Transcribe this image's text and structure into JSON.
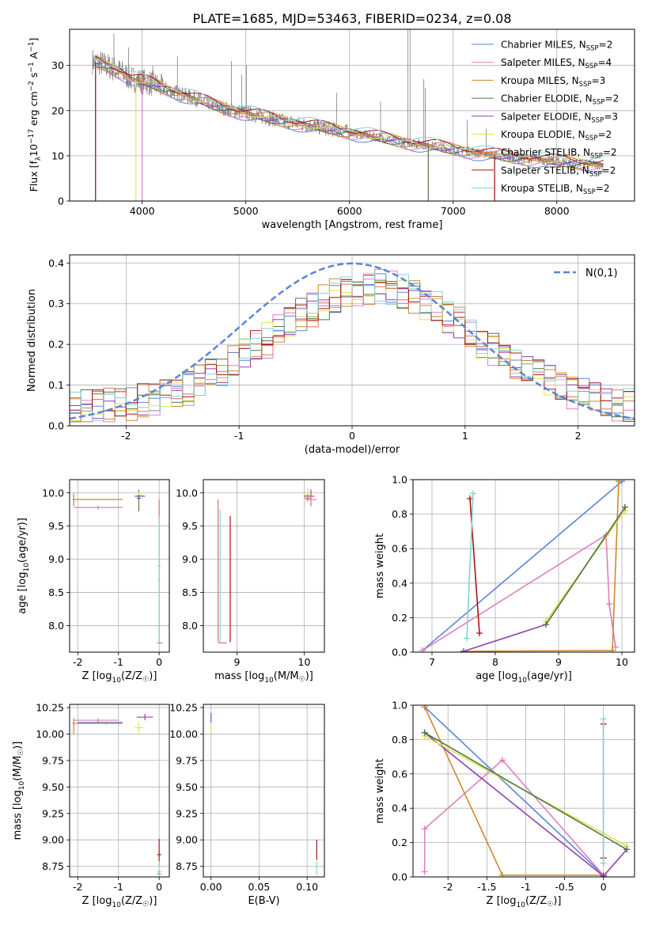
{
  "title": "PLATE=1685, MJD=53463, FIBERID=0234, z=0.08",
  "colors": [
    "#5b85d6",
    "#e07fbf",
    "#cc8a2a",
    "#4e7a44",
    "#8e44ad",
    "#e0e34f",
    "#d27a58",
    "#a81515",
    "#86d3d6"
  ],
  "legend_labels": [
    "Chabrier MILES, N",
    "Salpeter MILES, N",
    "Kroupa MILES, N",
    "Chabrier ELODIE, N",
    "Salpeter ELODIE, N",
    "Kroupa ELODIE, N",
    "Chabrier STELIB, N",
    "Salpeter STELIB, N",
    "Kroupa STELIB, N"
  ],
  "legend_sub": "SSP",
  "legend_counts": [
    "=2",
    "=4",
    "=3",
    "=2",
    "=3",
    "=2",
    "=2",
    "=2",
    "=2"
  ],
  "chart_data": [
    {
      "type": "line",
      "id": "spectrum",
      "xlabel": "wavelength [Angstrom, rest frame]",
      "ylabel": "Flux [f_λ 10^-17 erg cm^-2 s^-1 A^-1]",
      "xlim": [
        3300,
        8750
      ],
      "ylim": [
        0,
        38
      ],
      "xticks": [
        4000,
        5000,
        6000,
        7000,
        8000
      ],
      "yticks": [
        0,
        10,
        20,
        30
      ],
      "continuum": {
        "x": [
          3500,
          3600,
          3700,
          3800,
          3900,
          4000,
          4100,
          4200,
          4400,
          4600,
          4800,
          5000,
          5200,
          5400,
          5600,
          5800,
          6000,
          6200,
          6400,
          6600,
          6800,
          7000,
          7200,
          7400,
          7600,
          7800,
          8000,
          8200,
          8400
        ],
        "y": [
          31,
          30.5,
          29.5,
          28.5,
          27,
          26.5,
          26,
          25,
          23.5,
          22,
          20.5,
          19.5,
          18.5,
          17.5,
          16.8,
          16,
          15.2,
          14.4,
          13.6,
          12.8,
          12.2,
          11.5,
          10.8,
          10.2,
          9.6,
          9.2,
          8.8,
          8.4,
          8.0
        ]
      }
    },
    {
      "type": "histogram",
      "id": "residuals",
      "xlabel": "(data-model)/error",
      "ylabel": "Normed distribution",
      "xlim": [
        -2.5,
        2.5
      ],
      "ylim": [
        0,
        0.42
      ],
      "xticks": [
        -2,
        -1,
        0,
        1,
        2
      ],
      "yticks": [
        0.0,
        0.1,
        0.2,
        0.3,
        0.4
      ],
      "gaussian_label": "N(0,1)",
      "bin_width": 0.1
    },
    {
      "type": "scatter",
      "id": "age_vs_Z",
      "xlabel": "Z [log10(Z/Z☉)]",
      "ylabel": "age [log10(age/yr)]",
      "xlim": [
        -2.2,
        0.25
      ],
      "ylim": [
        7.6,
        10.2
      ],
      "xticks": [
        -2,
        -1,
        0
      ],
      "yticks": [
        8.0,
        8.5,
        9.0,
        9.5,
        10.0
      ]
    },
    {
      "type": "scatter",
      "id": "age_vs_mass",
      "xlabel": "mass [log10(M/M☉)]",
      "ylabel": "",
      "xlim": [
        8.5,
        10.3
      ],
      "ylim": [
        7.6,
        10.2
      ],
      "xticks": [
        9,
        10
      ],
      "yticks": [
        8.0,
        8.5,
        9.0,
        9.5,
        10.0
      ]
    },
    {
      "type": "line",
      "id": "weight_vs_age",
      "xlabel": "age [log10(age/yr)]",
      "ylabel": "mass weight",
      "xlim": [
        6.7,
        10.2
      ],
      "ylim": [
        0,
        1.0
      ],
      "xticks": [
        7,
        8,
        9,
        10
      ],
      "yticks": [
        0.0,
        0.2,
        0.4,
        0.6,
        0.8,
        1.0
      ],
      "series": [
        {
          "c": 0,
          "x": [
            6.85,
            10.0
          ],
          "y": [
            0.01,
            0.99
          ]
        },
        {
          "c": 1,
          "x": [
            6.85,
            9.75,
            9.8,
            9.9
          ],
          "y": [
            0.01,
            0.68,
            0.28,
            0.03
          ]
        },
        {
          "c": 2,
          "x": [
            7.5,
            9.85,
            9.95
          ],
          "y": [
            0.005,
            0.01,
            0.99
          ]
        },
        {
          "c": 4,
          "x": [
            7.5,
            8.8,
            10.05
          ],
          "y": [
            0.005,
            0.16,
            0.84
          ]
        },
        {
          "c": 5,
          "x": [
            8.8,
            10.05
          ],
          "y": [
            0.18,
            0.82
          ]
        },
        {
          "c": 3,
          "x": [
            8.8,
            10.05
          ],
          "y": [
            0.16,
            0.84
          ]
        },
        {
          "c": 7,
          "x": [
            7.6,
            7.75
          ],
          "y": [
            0.89,
            0.11
          ]
        },
        {
          "c": 8,
          "x": [
            7.55,
            7.65
          ],
          "y": [
            0.08,
            0.92
          ]
        }
      ]
    },
    {
      "type": "scatter",
      "id": "mass_vs_Z",
      "xlabel": "Z [log10(Z/Z☉)]",
      "ylabel": "mass [log10(M/M☉)]",
      "xlim": [
        -2.2,
        0.25
      ],
      "ylim": [
        8.65,
        10.28
      ],
      "xticks": [
        -2,
        -1,
        0
      ],
      "yticks": [
        8.75,
        9.0,
        9.25,
        9.5,
        9.75,
        10.0,
        10.25
      ]
    },
    {
      "type": "scatter",
      "id": "mass_vs_ebv",
      "xlabel": "E(B-V)",
      "ylabel": "",
      "xlim": [
        -0.008,
        0.118
      ],
      "ylim": [
        8.65,
        10.28
      ],
      "xticks": [
        0.0,
        0.05,
        0.1
      ],
      "yticks": [
        8.75,
        9.0,
        9.25,
        9.5,
        9.75,
        10.0,
        10.25
      ]
    },
    {
      "type": "line",
      "id": "weight_vs_Z",
      "xlabel": "Z [log10(Z/Z☉)]",
      "ylabel": "mass weight",
      "xlim": [
        -2.45,
        0.4
      ],
      "ylim": [
        0,
        1.0
      ],
      "xticks": [
        -2.0,
        -1.5,
        -1.0,
        -0.5,
        0.0
      ],
      "yticks": [
        0.0,
        0.2,
        0.4,
        0.6,
        0.8,
        1.0
      ],
      "series": [
        {
          "c": 0,
          "x": [
            -2.3,
            0.0
          ],
          "y": [
            0.99,
            0.01
          ]
        },
        {
          "c": 1,
          "x": [
            -2.3,
            -2.3,
            -1.3,
            0.0
          ],
          "y": [
            0.03,
            0.28,
            0.68,
            0.01
          ]
        },
        {
          "c": 2,
          "x": [
            -2.3,
            -1.3,
            0.0
          ],
          "y": [
            0.99,
            0.01,
            0.01
          ]
        },
        {
          "c": 4,
          "x": [
            -2.3,
            0.0,
            0.3
          ],
          "y": [
            0.84,
            0.005,
            0.16
          ]
        },
        {
          "c": 5,
          "x": [
            -2.3,
            0.3
          ],
          "y": [
            0.82,
            0.18
          ]
        },
        {
          "c": 3,
          "x": [
            -2.3,
            0.3
          ],
          "y": [
            0.84,
            0.16
          ]
        },
        {
          "c": 7,
          "x": [
            0.0,
            0.0
          ],
          "y": [
            0.11,
            0.89
          ]
        },
        {
          "c": 8,
          "x": [
            0.0,
            0.0
          ],
          "y": [
            0.08,
            0.92
          ]
        }
      ]
    }
  ]
}
